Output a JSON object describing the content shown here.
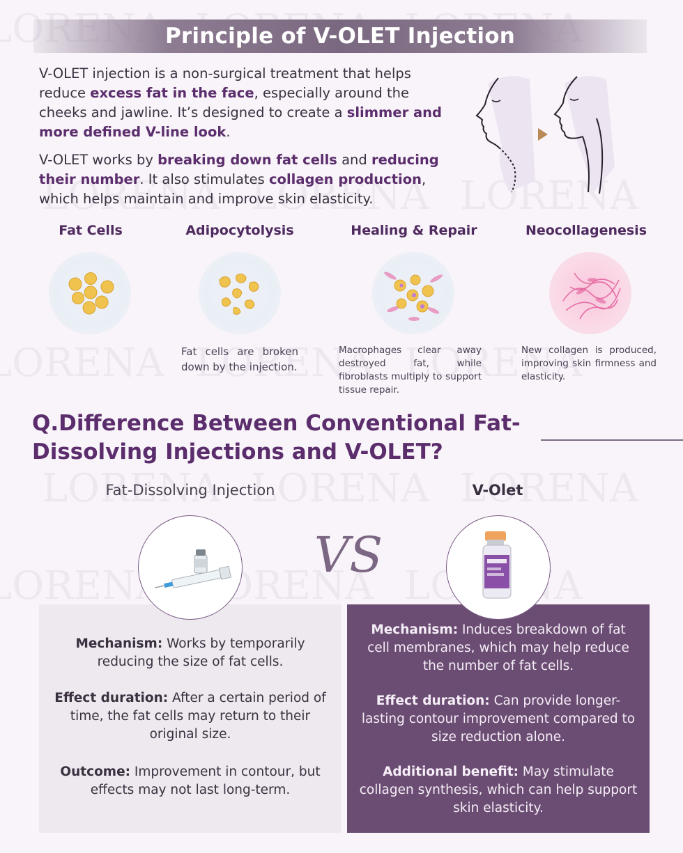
{
  "header": {
    "title": "Principle of V-OLET Injection"
  },
  "intro": {
    "p1": {
      "t1": "V-OLET injection is a non-surgical treatment that helps reduce ",
      "b1": "excess fat in the face",
      "t2": ", especially around the cheeks and jawline. It’s designed to create a ",
      "b2": "slimmer and more defined V-line look",
      "t3": "."
    },
    "p2": {
      "t1": "V-OLET works by ",
      "b1": "breaking down fat cells",
      "t2": " and ",
      "b2": "reducing their number",
      "t3": ". It also stimulates ",
      "b3": "collagen production",
      "t4": ", which helps maintain and improve skin elasticity."
    }
  },
  "stages": [
    {
      "title": "Fat Cells",
      "desc": ""
    },
    {
      "title": "Adipocytolysis",
      "desc": "Fat cells are broken down by the injection."
    },
    {
      "title": "Healing & Repair",
      "desc": "Macrophages clear away destroyed fat, while fibroblasts multiply to support tissue repair."
    },
    {
      "title": "Neocollagenesis",
      "desc": "New collagen is produced, improving skin firmness and elasticity."
    }
  ],
  "question": {
    "title": "Q.Difference Between Conventional Fat-Dissolving Injections and V-OLET?"
  },
  "comparison": {
    "left_heading": "Fat-Dissolving Injection",
    "right_heading": "V-Olet",
    "vs": "VS",
    "left": [
      {
        "label": "Mechanism:",
        "text": " Works by temporarily reducing the size of fat cells."
      },
      {
        "label": "Effect duration:",
        "text": " After a certain period of time, the fat cells may return to their original size."
      },
      {
        "label": "Outcome:",
        "text": " Improvement in contour, but effects may not last long-term."
      }
    ],
    "right": [
      {
        "label": "Mechanism:",
        "text": " Induces breakdown of fat cell membranes, which may help reduce the number of fat cells."
      },
      {
        "label": "Effect duration:",
        "text": " Can provide longer-lasting contour improvement compared to size reduction alone."
      },
      {
        "label": "Additional benefit:",
        "text": " May stimulate collagen synthesis, which can help support skin elasticity."
      }
    ]
  },
  "watermark": "LORENA",
  "colors": {
    "accent": "#5b2d6c",
    "panel_dark": "#6b4d73",
    "panel_light": "#ede9ee",
    "fat_yellow": "#f0c24e"
  }
}
